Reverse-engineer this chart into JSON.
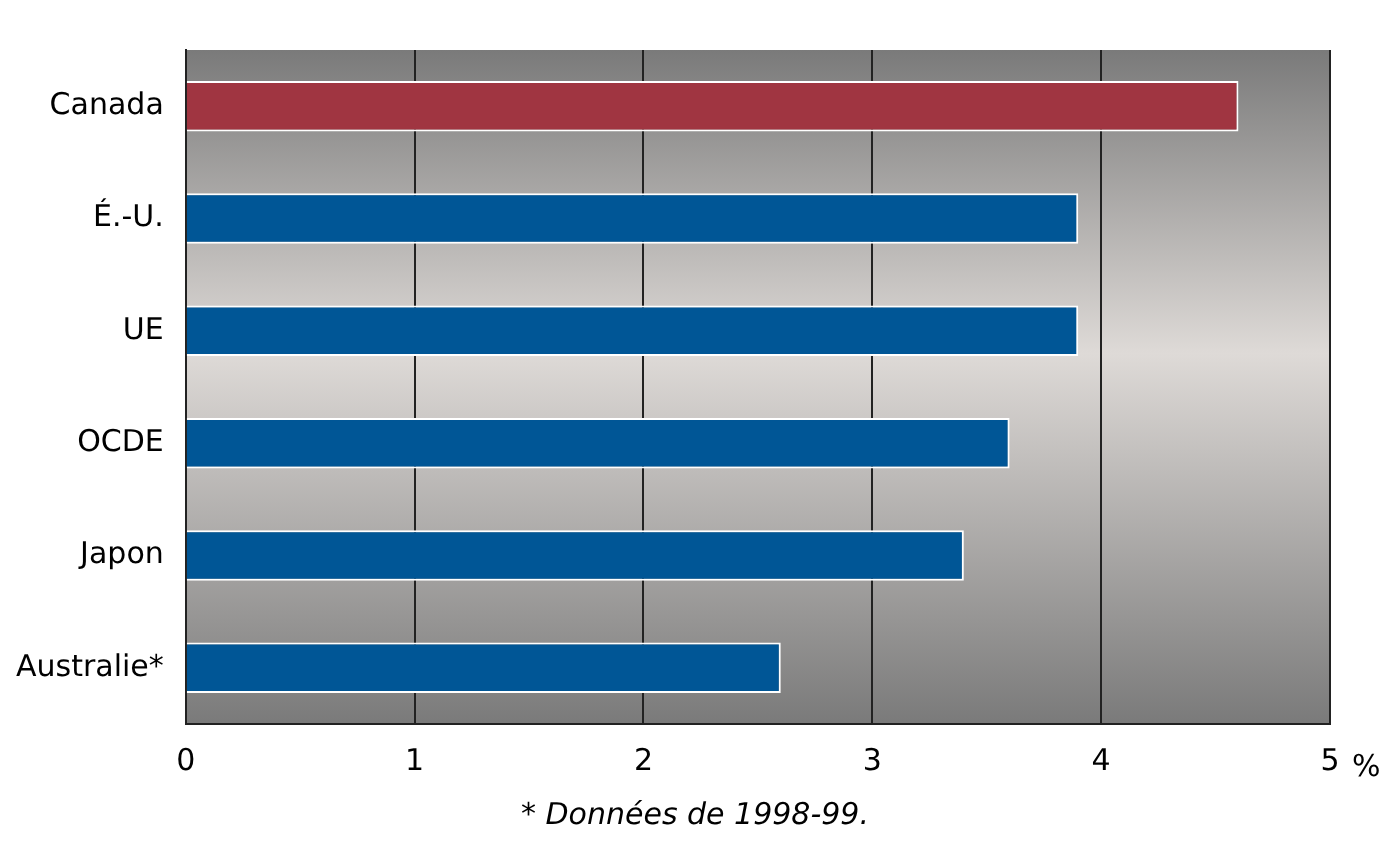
{
  "chart_data": {
    "type": "bar",
    "orientation": "horizontal",
    "categories": [
      "Canada",
      "É.-U.",
      "UE",
      "OCDE",
      "Japon",
      "Australie*"
    ],
    "values": [
      4.6,
      3.9,
      3.9,
      3.6,
      3.4,
      2.6
    ],
    "colors": [
      "#a03541",
      "#005696",
      "#005696",
      "#005696",
      "#005696",
      "#005696"
    ],
    "xlim": [
      0,
      5
    ],
    "xticks": [
      0,
      1,
      2,
      3,
      4,
      5
    ],
    "xlabel": "%",
    "grid": "x",
    "annotations": [
      "* Données de 1998-99."
    ]
  }
}
